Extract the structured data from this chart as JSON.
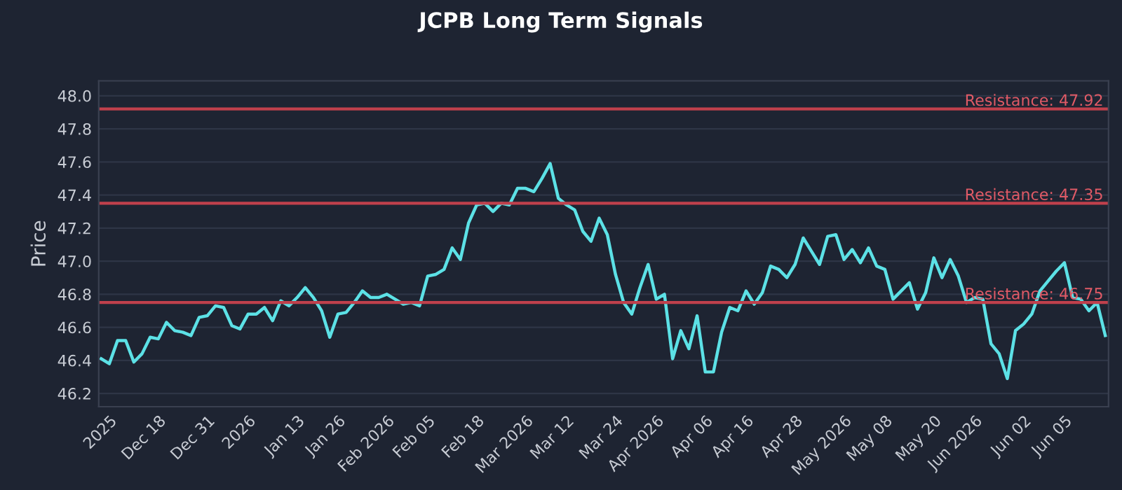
{
  "chart_data": {
    "type": "line",
    "title": "JCPB Long Term Signals",
    "ylabel": "Price",
    "categories": [
      null,
      "2025",
      null,
      null,
      null,
      null,
      null,
      "Dec 18",
      null,
      null,
      null,
      null,
      null,
      "Dec 31",
      null,
      null,
      null,
      null,
      "2026",
      null,
      null,
      null,
      null,
      null,
      "Jan 13",
      null,
      null,
      null,
      null,
      "Jan 26",
      null,
      null,
      null,
      null,
      null,
      "Feb 2026",
      null,
      null,
      null,
      null,
      "Feb 05",
      null,
      null,
      null,
      null,
      null,
      "Feb 18",
      null,
      null,
      null,
      null,
      null,
      "Mar 2026",
      null,
      null,
      null,
      null,
      "Mar 12",
      null,
      null,
      null,
      null,
      null,
      "Mar 24",
      null,
      null,
      null,
      null,
      "Apr 2026",
      null,
      null,
      null,
      null,
      null,
      "Apr 06",
      null,
      null,
      null,
      null,
      "Apr 16",
      null,
      null,
      null,
      null,
      null,
      "Apr 28",
      null,
      null,
      null,
      null,
      null,
      "May 2026",
      null,
      null,
      null,
      null,
      "May 08",
      null,
      null,
      null,
      null,
      null,
      "May 20",
      null,
      null,
      null,
      null,
      "Jun 2026",
      null,
      null,
      null,
      null,
      null,
      "Jun 02",
      null,
      null,
      null,
      null,
      "Jun 05",
      null,
      null,
      null,
      null,
      null
    ],
    "series": [
      {
        "color": "#5ce1e6",
        "values": [
          46.41,
          46.38,
          46.52,
          46.52,
          46.39,
          46.44,
          46.54,
          46.53,
          46.63,
          46.58,
          46.57,
          46.55,
          46.66,
          46.67,
          46.73,
          46.72,
          46.61,
          46.59,
          46.68,
          46.68,
          46.72,
          46.64,
          46.76,
          46.73,
          46.78,
          46.84,
          46.78,
          46.7,
          46.54,
          46.68,
          46.69,
          46.75,
          46.82,
          46.78,
          46.78,
          46.8,
          46.77,
          46.74,
          46.75,
          46.73,
          46.91,
          46.92,
          46.95,
          47.08,
          47.01,
          47.23,
          47.34,
          47.35,
          47.3,
          47.35,
          47.34,
          47.44,
          47.44,
          47.42,
          47.5,
          47.59,
          47.38,
          47.34,
          47.31,
          47.18,
          47.12,
          47.26,
          47.16,
          46.92,
          46.75,
          46.68,
          46.84,
          46.98,
          46.77,
          46.8,
          46.41,
          46.58,
          46.47,
          46.67,
          46.33,
          46.33,
          46.57,
          46.72,
          46.7,
          46.82,
          46.74,
          46.81,
          46.97,
          46.95,
          46.9,
          46.98,
          47.14,
          47.06,
          46.98,
          47.15,
          47.16,
          47.01,
          47.07,
          46.99,
          47.08,
          46.97,
          46.95,
          46.77,
          46.82,
          46.87,
          46.71,
          46.81,
          47.02,
          46.9,
          47.01,
          46.91,
          46.75,
          46.78,
          46.77,
          46.5,
          46.44,
          46.29,
          46.58,
          46.62,
          46.68,
          46.82,
          46.88,
          46.94,
          46.99,
          46.78,
          46.77,
          46.7,
          46.75,
          46.55
        ]
      }
    ],
    "ylim": [
      46.12,
      48.09
    ],
    "yticks": [
      46.2,
      46.4,
      46.6,
      46.8,
      {
        "value": 47.0,
        "label": "47.0"
      },
      47.2,
      47.4,
      47.6,
      47.8,
      {
        "value": 48.0,
        "label": "48.0"
      }
    ],
    "grid": "y",
    "marker": "none",
    "line_style": "solid",
    "ref_lines": [
      {
        "axis": "y",
        "value": 47.92,
        "label": "Resistance: 47.92",
        "color": "#c0404c"
      },
      {
        "axis": "y",
        "value": 47.35,
        "label": "Resistance: 47.35",
        "color": "#c0404c"
      },
      {
        "axis": "y",
        "value": 46.75,
        "label": "Resistance: 46.75",
        "color": "#c0404c"
      }
    ]
  }
}
